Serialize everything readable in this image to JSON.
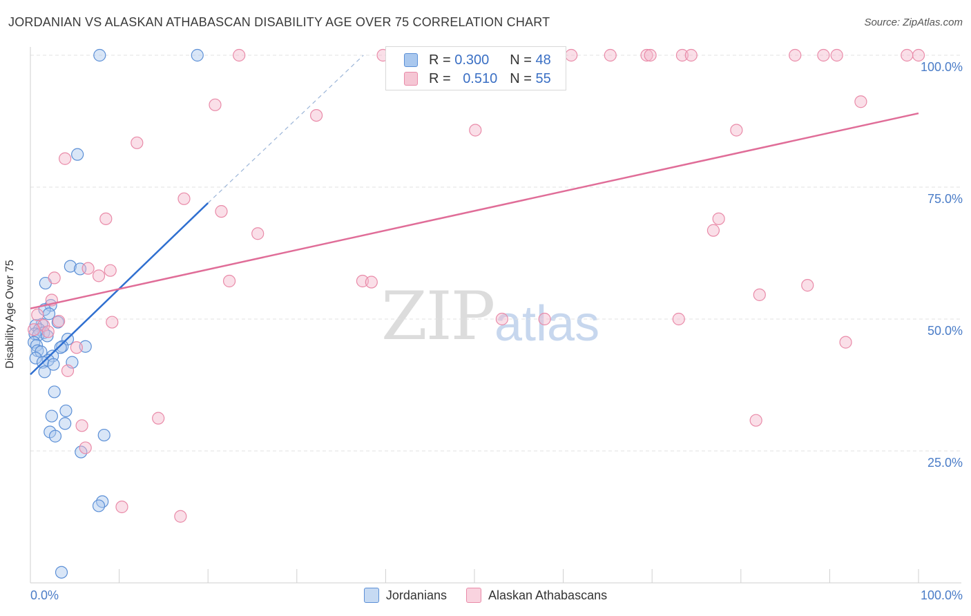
{
  "title": "JORDANIAN VS ALASKAN ATHABASCAN DISABILITY AGE OVER 75 CORRELATION CHART",
  "source": "Source: ZipAtlas.com",
  "watermark": {
    "zip": "ZIP",
    "atlas": "atlas"
  },
  "legend_top": {
    "r_label": "R =",
    "n_label": "N =",
    "rows": [
      {
        "r": "0.300",
        "n": "48"
      },
      {
        "r": "0.510",
        "n": "55"
      }
    ]
  },
  "colors": {
    "blue_fill": "#aac8ee",
    "blue_stroke": "#5b8fd6",
    "blue_line": "#2f6fd0",
    "pink_fill": "#f5b9cb",
    "pink_stroke": "#e98aa8",
    "pink_line": "#e06d98",
    "grid": "#e2e2e2",
    "tick_label": "#4a7cc7"
  },
  "chart_data": {
    "type": "scatter",
    "title": "JORDANIAN VS ALASKAN ATHABASCAN DISABILITY AGE OVER 75 CORRELATION CHART",
    "xlabel": "",
    "ylabel": "Disability Age Over 75",
    "xlim": [
      0,
      100
    ],
    "ylim": [
      0,
      100
    ],
    "x_tick_labels": [
      "0.0%",
      "100.0%"
    ],
    "y_ticks": [
      {
        "value": 100,
        "label": "100.0%"
      },
      {
        "value": 75,
        "label": "75.0%"
      },
      {
        "value": 50,
        "label": "50.0%"
      },
      {
        "value": 25,
        "label": "25.0%"
      }
    ],
    "grid": true,
    "series": [
      {
        "name": "Jordanians",
        "r": 0.3,
        "n": 48,
        "trend": {
          "x": [
            0,
            20
          ],
          "y": [
            39.5,
            72
          ]
        },
        "trend_dashed": {
          "x": [
            20,
            37.5
          ],
          "y": [
            72,
            100
          ]
        },
        "points": [
          [
            7.8,
            100
          ],
          [
            18.8,
            100
          ],
          [
            5.3,
            81.2
          ],
          [
            4.5,
            60
          ],
          [
            5.6,
            59.5
          ],
          [
            1.7,
            56.8
          ],
          [
            2.3,
            52.6
          ],
          [
            1.6,
            51.8
          ],
          [
            2.1,
            51
          ],
          [
            3.1,
            49.4
          ],
          [
            1.3,
            49
          ],
          [
            0.6,
            48.8
          ],
          [
            1.0,
            48
          ],
          [
            1.5,
            47.4
          ],
          [
            0.5,
            47.2
          ],
          [
            0.9,
            47
          ],
          [
            1.9,
            46.8
          ],
          [
            4.2,
            46.2
          ],
          [
            0.4,
            45.6
          ],
          [
            0.7,
            45
          ],
          [
            3.6,
            44.8
          ],
          [
            3.4,
            44.6
          ],
          [
            6.2,
            44.8
          ],
          [
            0.8,
            44
          ],
          [
            1.2,
            43.8
          ],
          [
            2.5,
            43
          ],
          [
            0.6,
            42.6
          ],
          [
            2.0,
            42.2
          ],
          [
            1.4,
            41.8
          ],
          [
            4.7,
            41.8
          ],
          [
            2.6,
            41.4
          ],
          [
            1.6,
            40
          ],
          [
            2.7,
            36.2
          ],
          [
            4.0,
            32.6
          ],
          [
            2.4,
            31.6
          ],
          [
            3.9,
            30.2
          ],
          [
            2.2,
            28.6
          ],
          [
            2.8,
            27.8
          ],
          [
            8.3,
            28
          ],
          [
            5.7,
            24.8
          ],
          [
            8.1,
            15.4
          ],
          [
            7.7,
            14.6
          ],
          [
            3.5,
            2
          ]
        ]
      },
      {
        "name": "Alaskan Athabascans",
        "r": 0.51,
        "n": 55,
        "trend": {
          "x": [
            0,
            100
          ],
          "y": [
            52,
            89
          ]
        },
        "points": [
          [
            23.5,
            100
          ],
          [
            39.7,
            100
          ],
          [
            60.9,
            100
          ],
          [
            65.3,
            100
          ],
          [
            69.4,
            100
          ],
          [
            69.8,
            100
          ],
          [
            73.4,
            100
          ],
          [
            74.4,
            100
          ],
          [
            86.1,
            100
          ],
          [
            89.3,
            100
          ],
          [
            90.8,
            100
          ],
          [
            98.7,
            100
          ],
          [
            100,
            100
          ],
          [
            20.8,
            90.6
          ],
          [
            32.2,
            88.6
          ],
          [
            93.5,
            91.2
          ],
          [
            50.1,
            85.8
          ],
          [
            79.5,
            85.8
          ],
          [
            12.0,
            83.4
          ],
          [
            3.9,
            80.4
          ],
          [
            17.3,
            72.8
          ],
          [
            21.5,
            70.4
          ],
          [
            8.5,
            69
          ],
          [
            77.5,
            69
          ],
          [
            25.6,
            66.2
          ],
          [
            76.9,
            66.8
          ],
          [
            6.5,
            59.6
          ],
          [
            9.0,
            59.2
          ],
          [
            7.7,
            58.2
          ],
          [
            2.7,
            57.8
          ],
          [
            22.4,
            57.2
          ],
          [
            37.4,
            57.2
          ],
          [
            38.4,
            57
          ],
          [
            87.5,
            56.4
          ],
          [
            82.1,
            54.6
          ],
          [
            2.4,
            53.6
          ],
          [
            0.8,
            50.8
          ],
          [
            53.1,
            50
          ],
          [
            57.9,
            50
          ],
          [
            73.0,
            50
          ],
          [
            3.2,
            49.6
          ],
          [
            9.2,
            49.4
          ],
          [
            1.5,
            48.8
          ],
          [
            0.4,
            48
          ],
          [
            2.0,
            47.6
          ],
          [
            91.8,
            45.6
          ],
          [
            5.2,
            44.6
          ],
          [
            4.2,
            40.2
          ],
          [
            14.4,
            31.2
          ],
          [
            81.7,
            30.8
          ],
          [
            5.8,
            29.8
          ],
          [
            6.2,
            25.6
          ],
          [
            10.3,
            14.4
          ],
          [
            16.9,
            12.6
          ]
        ]
      }
    ]
  },
  "legend_bottom": [
    {
      "label": "Jordanians"
    },
    {
      "label": "Alaskan Athabascans"
    }
  ]
}
